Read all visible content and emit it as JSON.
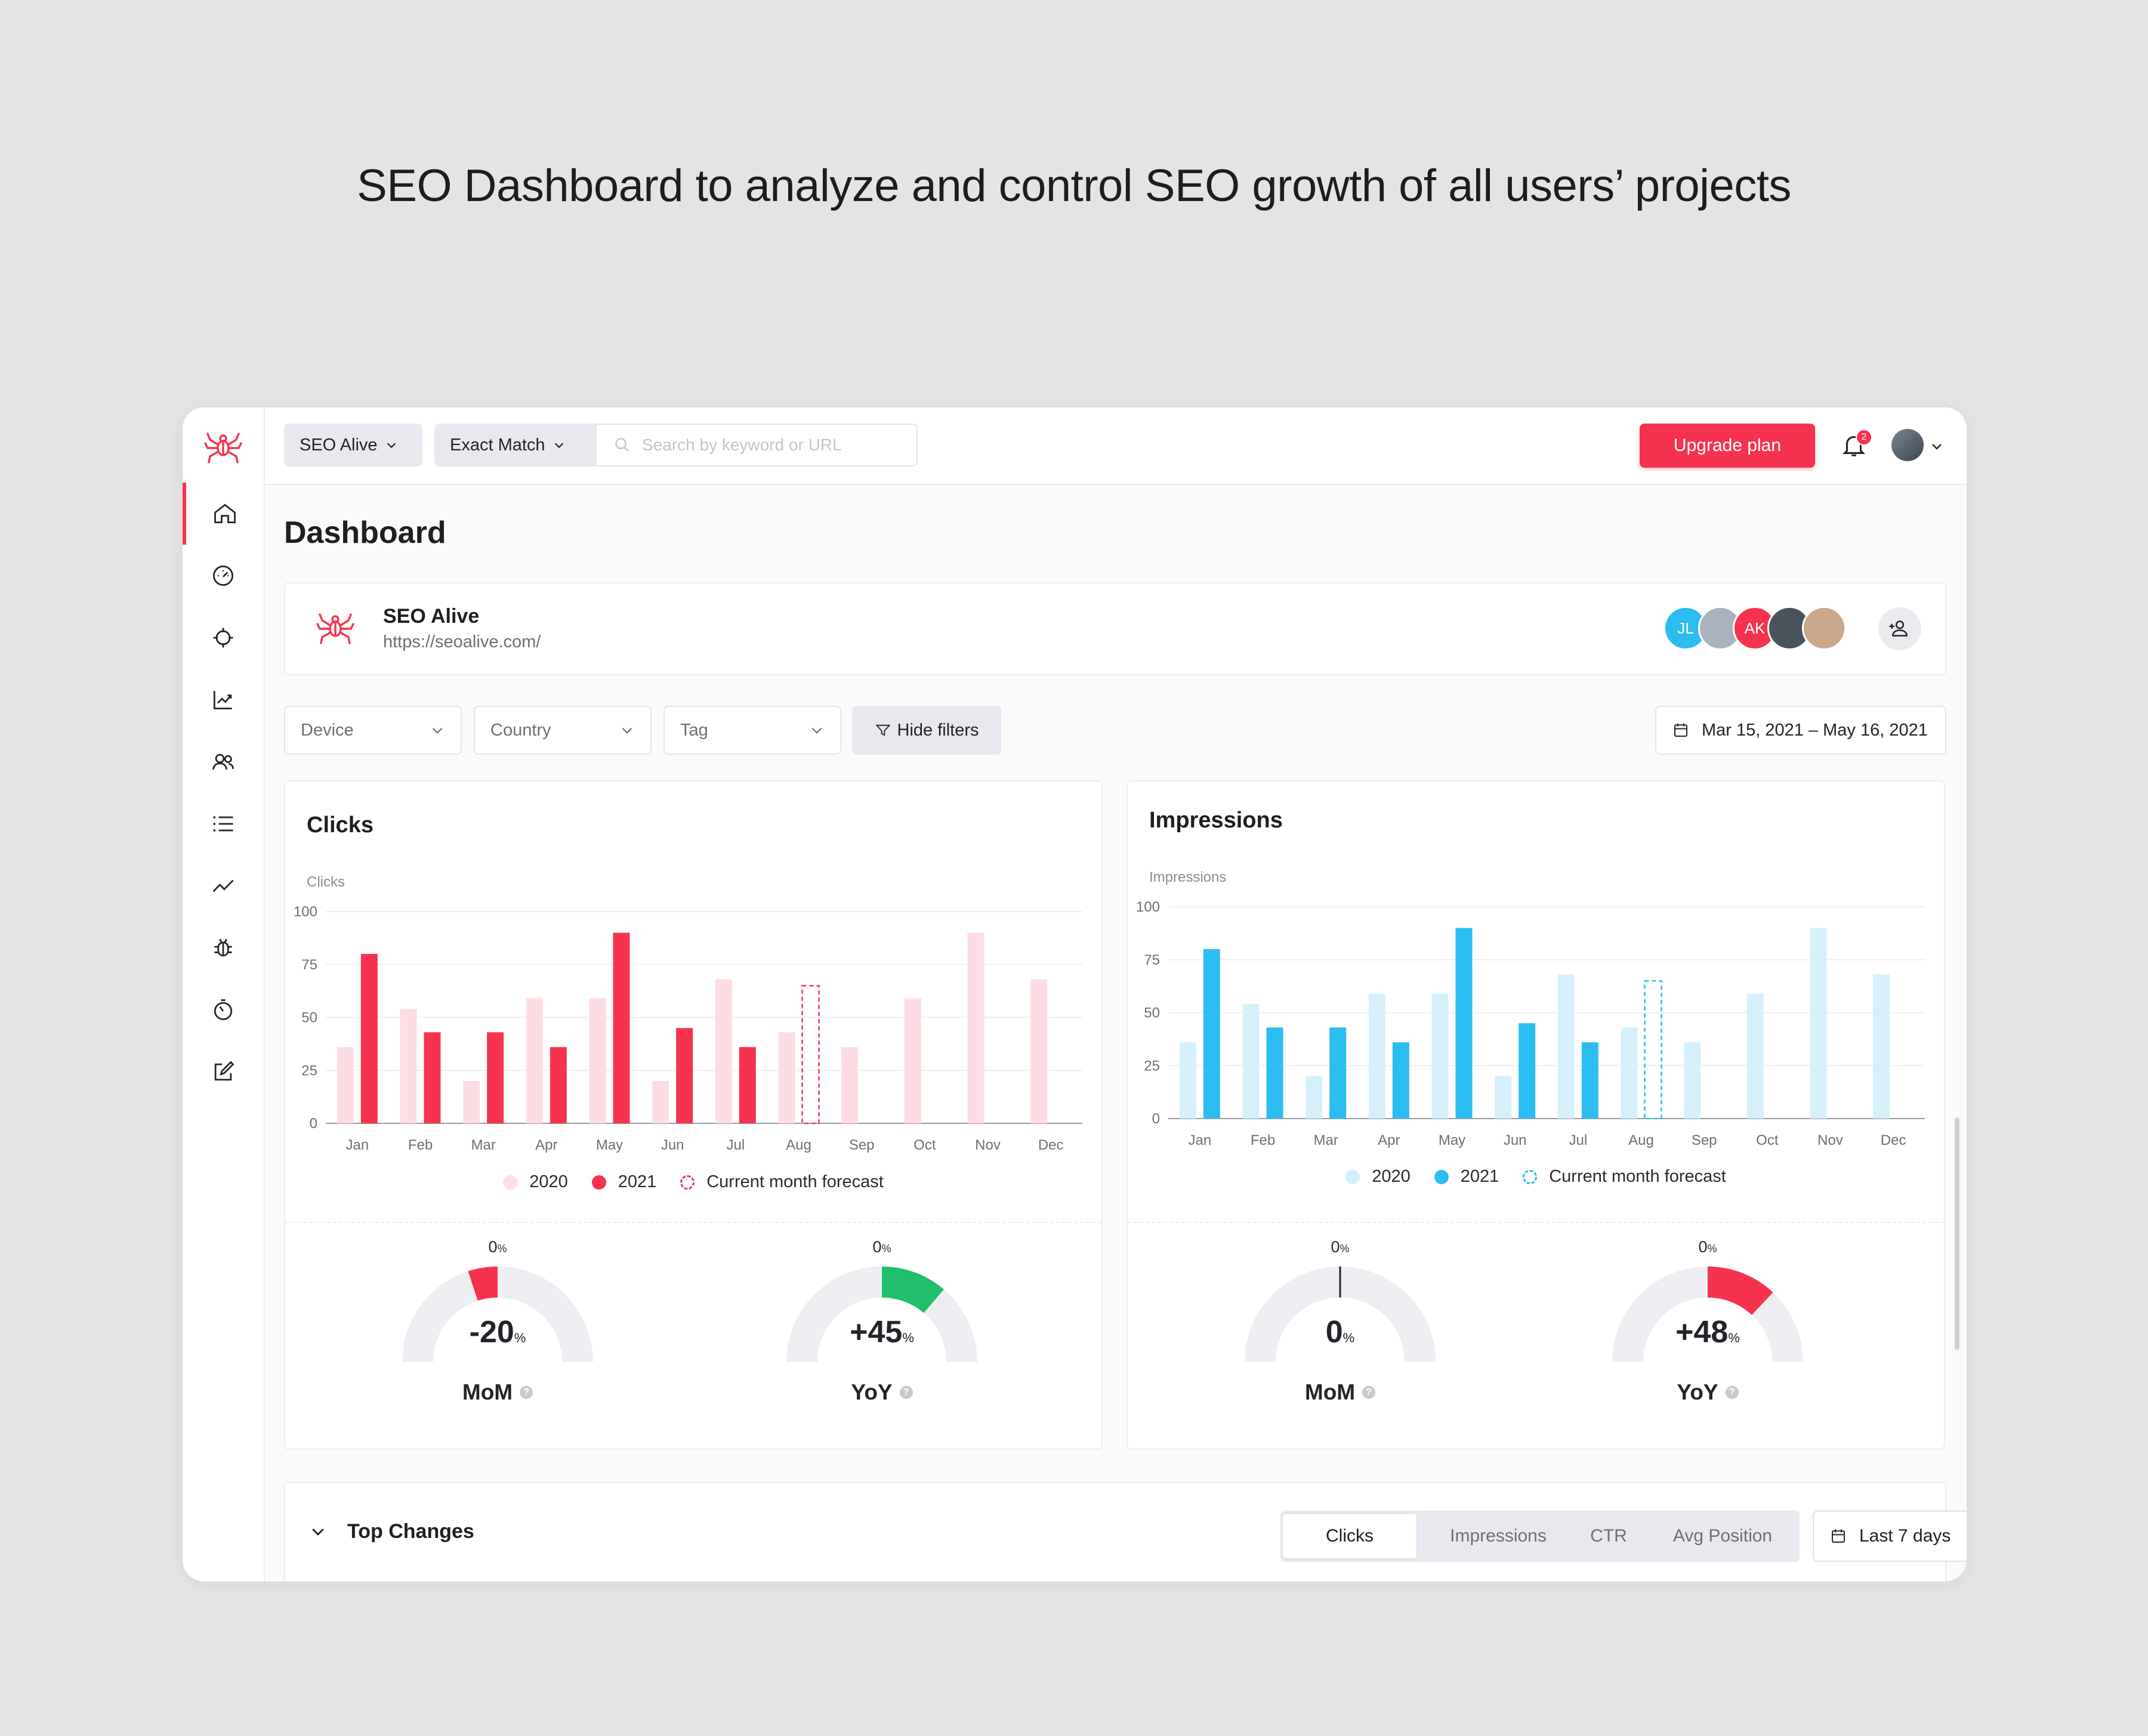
{
  "headline": "SEO Dashboard to analyze and control SEO growth of all users’ projects",
  "topbar": {
    "project_select": "SEO Alive",
    "match_select": "Exact Match",
    "search_placeholder": "Search by keyword or URL",
    "upgrade_label": "Upgrade plan",
    "notifications_count": "2"
  },
  "sidebar": {
    "items": [
      "home-icon",
      "speedometer-icon",
      "target-icon",
      "chart-growth-icon",
      "users-icon",
      "list-icon",
      "trend-line-icon",
      "bug-icon",
      "timer-icon",
      "edit-icon"
    ],
    "active": "home-icon"
  },
  "page": {
    "title": "Dashboard"
  },
  "project": {
    "name": "SEO Alive",
    "url": "https://seoalive.com/",
    "members": [
      {
        "initials": "JL",
        "color": "#2bbdf0"
      },
      {
        "initials": "",
        "color": "#a9b3bd"
      },
      {
        "initials": "AK",
        "color": "#f6334f"
      },
      {
        "initials": "",
        "color": "#4a525c"
      },
      {
        "initials": "",
        "color": "#c9a98a"
      }
    ]
  },
  "filters": {
    "device": "Device",
    "country": "Country",
    "tag": "Tag",
    "hide_label": "Hide filters",
    "date_range": "Mar 15, 2021 – May 16, 2021"
  },
  "chart_data": [
    {
      "type": "bar",
      "title": "Clicks",
      "ylabel": "Clicks",
      "categories": [
        "Jan",
        "Feb",
        "Mar",
        "Apr",
        "May",
        "Jun",
        "Jul",
        "Aug",
        "Sep",
        "Oct",
        "Nov",
        "Dec"
      ],
      "yticks": [
        "0",
        "25",
        "50",
        "75",
        "100"
      ],
      "ylim": [
        0,
        100
      ],
      "series": [
        {
          "name": "2020",
          "color": "#fddde3",
          "values": [
            36,
            54,
            20,
            59,
            59,
            20,
            68,
            43,
            36,
            59,
            90,
            68
          ]
        },
        {
          "name": "2021",
          "color": "#f6334f",
          "values": [
            80,
            43,
            43,
            36,
            90,
            45,
            36,
            null,
            null,
            null,
            null,
            null
          ]
        }
      ],
      "forecast": {
        "name": "Current month forecast",
        "category": "Aug",
        "value": 65,
        "color": "#f6334f"
      },
      "gauges": [
        {
          "top": "0",
          "unit": "%",
          "value": "-20",
          "label": "MoM",
          "fill": 0.2,
          "color": "#f6334f",
          "direction": "left"
        },
        {
          "top": "0",
          "unit": "%",
          "value": "+45",
          "label": "YoY",
          "fill": 0.45,
          "color": "#1fbf6b",
          "direction": "right"
        }
      ]
    },
    {
      "type": "bar",
      "title": "Impressions",
      "ylabel": "Impressions",
      "categories": [
        "Jan",
        "Feb",
        "Mar",
        "Apr",
        "May",
        "Jun",
        "Jul",
        "Aug",
        "Sep",
        "Oct",
        "Nov",
        "Dec"
      ],
      "yticks": [
        "0",
        "25",
        "50",
        "75",
        "100"
      ],
      "ylim": [
        0,
        100
      ],
      "series": [
        {
          "name": "2020",
          "color": "#d6f0fb",
          "values": [
            36,
            54,
            20,
            59,
            59,
            20,
            68,
            43,
            36,
            59,
            90,
            68
          ]
        },
        {
          "name": "2021",
          "color": "#2bbdf0",
          "values": [
            80,
            43,
            43,
            36,
            90,
            45,
            36,
            null,
            null,
            null,
            null,
            null
          ]
        }
      ],
      "forecast": {
        "name": "Current month forecast",
        "category": "Aug",
        "value": 65,
        "color": "#2bbdf0"
      },
      "gauges": [
        {
          "top": "0",
          "unit": "%",
          "value": "0",
          "label": "MoM",
          "fill": 0,
          "color": "#23232a",
          "direction": "none"
        },
        {
          "top": "0",
          "unit": "%",
          "value": "+48",
          "label": "YoY",
          "fill": 0.48,
          "color": "#f6334f",
          "direction": "right"
        }
      ]
    }
  ],
  "top_changes": {
    "title": "Top Changes",
    "tabs": [
      "Clicks",
      "Impressions",
      "CTR",
      "Avg Position"
    ],
    "active_tab": "Clicks",
    "period": "Last 7 days"
  }
}
